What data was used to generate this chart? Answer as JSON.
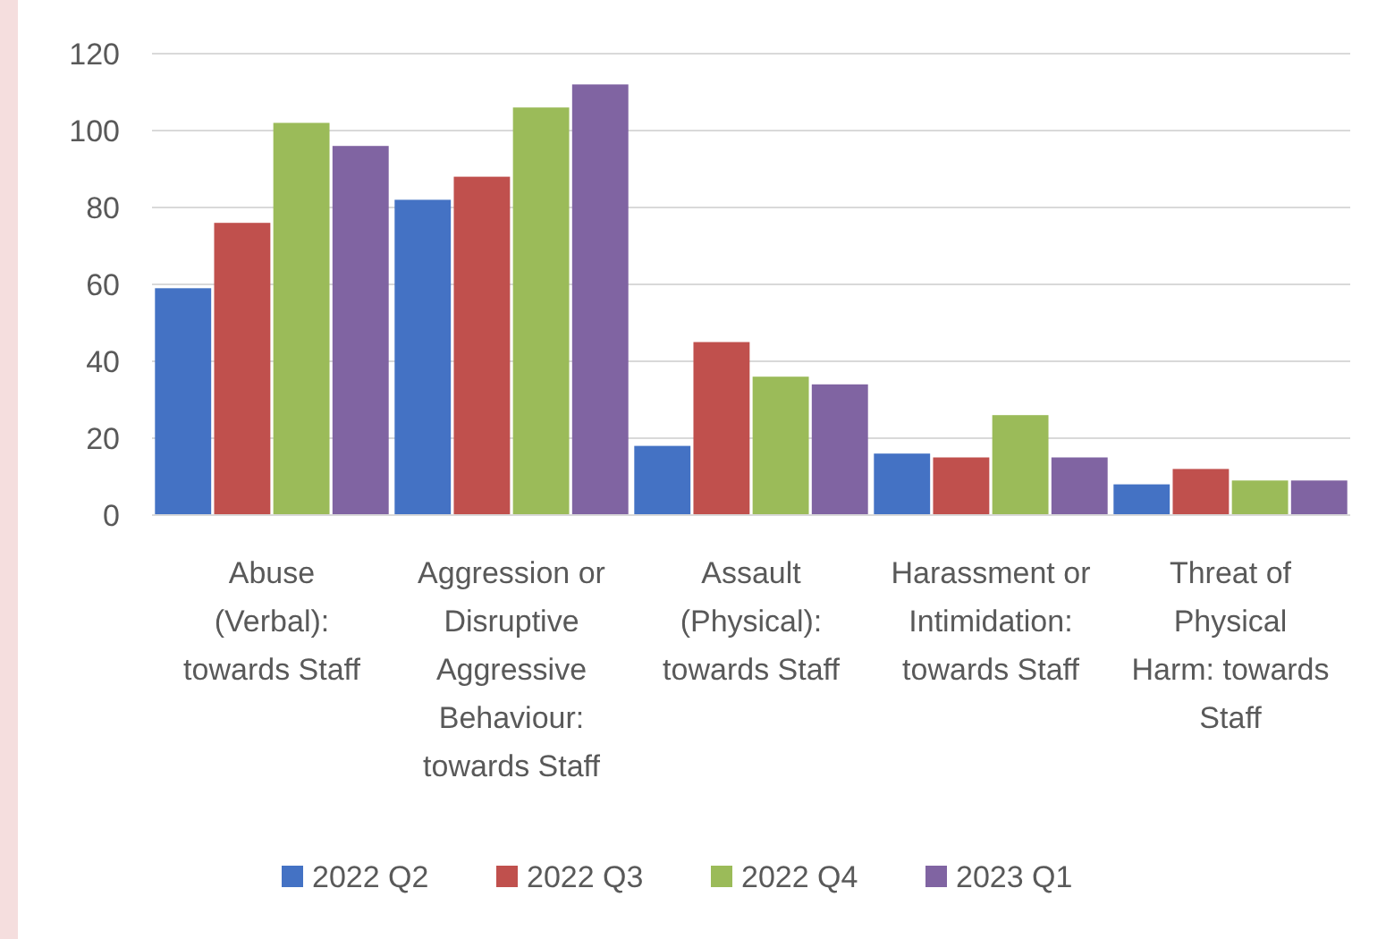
{
  "chart_data": {
    "type": "bar",
    "categories": [
      "Abuse (Verbal): towards Staff",
      "Aggression or Disruptive Aggressive Behaviour: towards Staff",
      "Assault (Physical): towards Staff",
      "Harassment or Intimidation: towards Staff",
      "Threat of Physical Harm: towards Staff"
    ],
    "series": [
      {
        "name": "2022 Q2",
        "color": "#4472c4",
        "values": [
          59,
          82,
          18,
          16,
          8
        ]
      },
      {
        "name": "2022 Q3",
        "color": "#c0504d",
        "values": [
          76,
          88,
          45,
          15,
          12
        ]
      },
      {
        "name": "2022 Q4",
        "color": "#9bbb59",
        "values": [
          102,
          106,
          36,
          26,
          9
        ]
      },
      {
        "name": "2023 Q1",
        "color": "#8064a2",
        "values": [
          96,
          112,
          34,
          15,
          9
        ]
      }
    ],
    "ylim": [
      0,
      120
    ],
    "yticks": [
      0,
      20,
      40,
      60,
      80,
      100,
      120
    ],
    "grid": "y",
    "legend": "bottom"
  }
}
